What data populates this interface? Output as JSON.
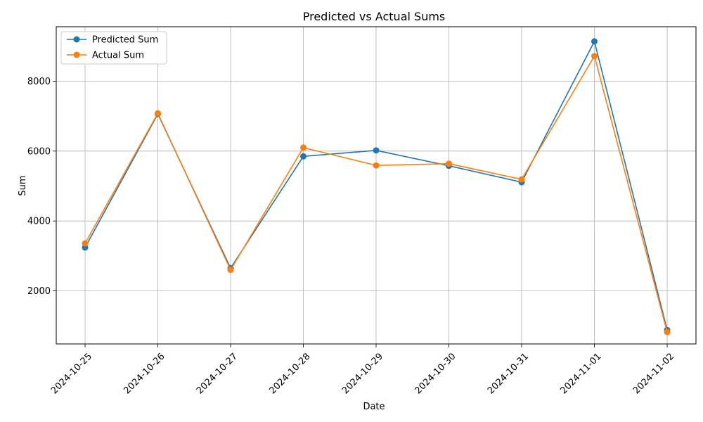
{
  "chart_data": {
    "type": "line",
    "title": "Predicted vs Actual Sums",
    "xlabel": "Date",
    "ylabel": "Sum",
    "categories": [
      "2024-10-25",
      "2024-10-26",
      "2024-10-27",
      "2024-10-28",
      "2024-10-29",
      "2024-10-30",
      "2024-10-31",
      "2024-11-01",
      "2024-11-02"
    ],
    "series": [
      {
        "name": "Predicted Sum",
        "color": "#1f77b4",
        "marker": "circle",
        "values": [
          3240,
          7060,
          2650,
          5850,
          6020,
          5580,
          5110,
          9140,
          880
        ]
      },
      {
        "name": "Actual Sum",
        "color": "#ff7f0e",
        "marker": "circle",
        "values": [
          3360,
          7080,
          2600,
          6100,
          5590,
          5640,
          5190,
          8720,
          820
        ]
      }
    ],
    "yticks": [
      2000,
      4000,
      6000,
      8000
    ],
    "ylim": [
      480,
      9560
    ],
    "grid": true,
    "legend": "top-left"
  }
}
